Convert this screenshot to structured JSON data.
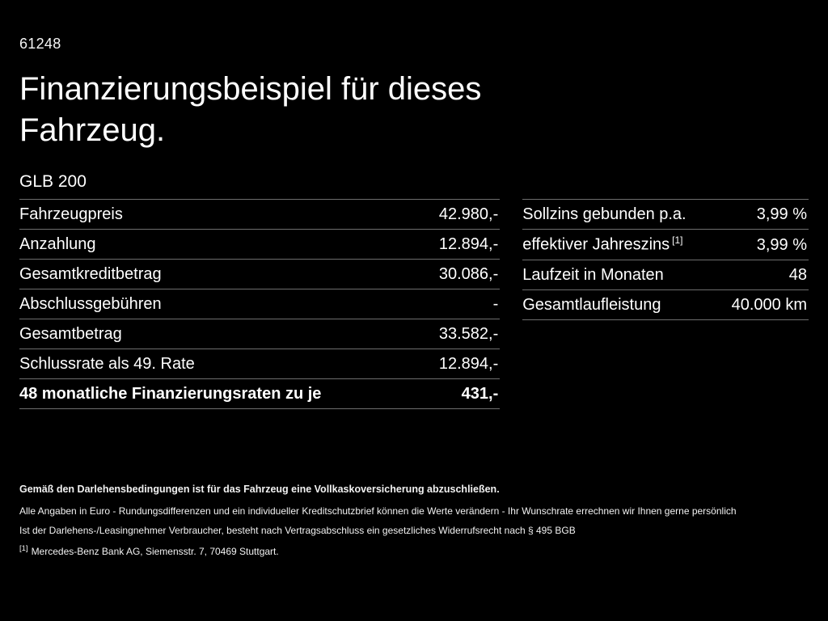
{
  "page": {
    "number": "61248",
    "title": "Finanzierungsbeispiel für dieses Fahrzeug.",
    "model": "GLB 200"
  },
  "left_table": {
    "rows": [
      {
        "label": "Fahrzeugpreis",
        "value": "42.980,-"
      },
      {
        "label": "Anzahlung",
        "value": "12.894,-"
      },
      {
        "label": "Gesamtkreditbetrag",
        "value": "30.086,-"
      },
      {
        "label": "Abschlussgebühren",
        "value": "-"
      },
      {
        "label": "Gesamtbetrag",
        "value": "33.582,-"
      },
      {
        "label": "Schlussrate als 49. Rate",
        "value": "12.894,-"
      },
      {
        "label": "48 monatliche Finanzierungsraten zu je",
        "value": "431,-"
      }
    ]
  },
  "right_table": {
    "rows": [
      {
        "label": "Sollzins gebunden p.a.",
        "value": "3,99 %"
      },
      {
        "label": "effektiver Jahreszins",
        "sup": "[1]",
        "value": "3,99 %"
      },
      {
        "label": "Laufzeit in Monaten",
        "value": "48"
      },
      {
        "label": "Gesamtlaufleistung",
        "value": "40.000 km"
      }
    ]
  },
  "footnotes": {
    "insurance": "Gemäß den Darlehensbedingungen ist für das Fahrzeug eine Vollkaskoversicherung abzuschließen.",
    "disclaimer1": "Alle Angaben in Euro - Rundungsdifferenzen und ein individueller Kreditschutzbrief können die Werte verändern - Ihr Wunschrate errechnen wir Ihnen gerne persönlich",
    "disclaimer2": "Ist der Darlehens-/Leasingnehmer Verbraucher, besteht nach Vertragsabschluss ein gesetzliches Widerrufsrecht nach § 495 BGB",
    "ref_marker": "[1]",
    "ref_text": "Mercedes-Benz Bank AG, Siemensstr. 7, 70469 Stuttgart."
  },
  "colors": {
    "background": "#000000",
    "text": "#ffffff",
    "divider": "#6e6e6e"
  }
}
